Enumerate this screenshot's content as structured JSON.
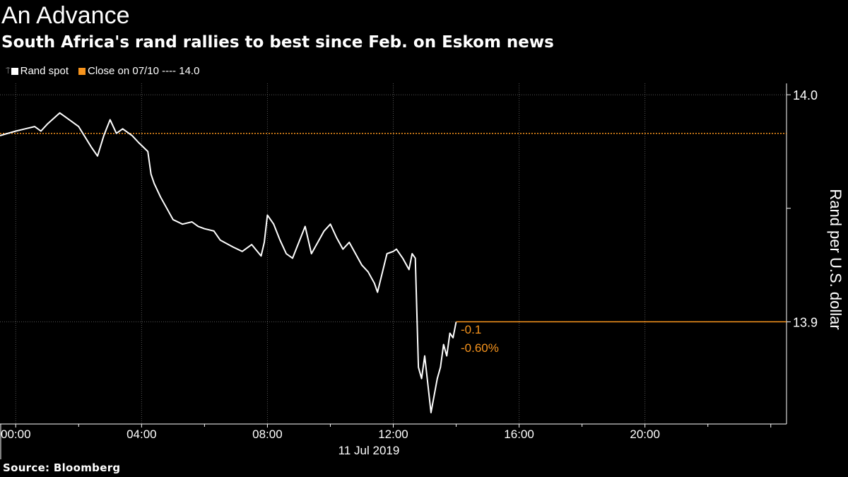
{
  "title": "An Advance",
  "subtitle": "South Africa's rand rallies to best since Feb. on Eskom news",
  "source": "Source: Bloomberg",
  "legend": {
    "series_label": "Rand spot",
    "ref_label": "Close on 07/10 ---- 14.0"
  },
  "colors": {
    "background": "#000000",
    "series": "#ffffff",
    "reference": "#f7941d",
    "grid": "#666666"
  },
  "annotation": {
    "change": "-0.1",
    "percent": "-0.60%"
  },
  "chart_data": {
    "type": "line",
    "title": "An Advance",
    "ylabel": "Rand per U.S. dollar",
    "x_date_label": "11 Jul 2019",
    "xlim": [
      -0.5,
      24.5
    ],
    "ylim": [
      13.855,
      14.005
    ],
    "x_ticks": [
      {
        "value": 0,
        "label": "00:00"
      },
      {
        "value": 4,
        "label": "04:00"
      },
      {
        "value": 8,
        "label": "08:00"
      },
      {
        "value": 12,
        "label": "12:00"
      },
      {
        "value": 16,
        "label": "16:00"
      },
      {
        "value": 20,
        "label": "20:00"
      }
    ],
    "y_ticks": [
      {
        "value": 14.0,
        "label": "14.0"
      },
      {
        "value": 13.95,
        "label": ""
      },
      {
        "value": 13.9,
        "label": "13.9"
      }
    ],
    "reference_line": {
      "name": "Close on 07/10",
      "value": 13.983
    },
    "series": [
      {
        "name": "Rand spot",
        "x": [
          -0.5,
          0.0,
          0.3,
          0.6,
          0.8,
          1.0,
          1.4,
          1.6,
          2.0,
          2.4,
          2.6,
          2.8,
          3.0,
          3.2,
          3.4,
          3.7,
          3.9,
          4.2,
          4.3,
          4.4,
          4.6,
          4.8,
          5.0,
          5.3,
          5.6,
          5.8,
          6.0,
          6.3,
          6.5,
          6.9,
          7.2,
          7.5,
          7.8,
          7.9,
          8.0,
          8.2,
          8.4,
          8.6,
          8.8,
          9.0,
          9.2,
          9.4,
          9.6,
          9.8,
          10.0,
          10.2,
          10.4,
          10.6,
          10.8,
          11.0,
          11.2,
          11.4,
          11.5,
          11.8,
          12.0,
          12.1,
          12.3,
          12.5,
          12.6,
          12.7,
          12.8,
          12.9,
          13.0,
          13.2,
          13.4,
          13.5,
          13.6,
          13.7,
          13.8,
          13.9,
          14.0
        ],
        "y": [
          13.982,
          13.984,
          13.985,
          13.986,
          13.984,
          13.987,
          13.992,
          13.99,
          13.986,
          13.977,
          13.973,
          13.982,
          13.989,
          13.983,
          13.985,
          13.982,
          13.979,
          13.975,
          13.965,
          13.961,
          13.955,
          13.95,
          13.945,
          13.943,
          13.944,
          13.942,
          13.941,
          13.94,
          13.936,
          13.933,
          13.931,
          13.934,
          13.929,
          13.935,
          13.947,
          13.943,
          13.936,
          13.93,
          13.928,
          13.935,
          13.942,
          13.93,
          13.935,
          13.94,
          13.943,
          13.937,
          13.932,
          13.935,
          13.93,
          13.925,
          13.922,
          13.917,
          13.913,
          13.93,
          13.931,
          13.932,
          13.928,
          13.923,
          13.93,
          13.928,
          13.88,
          13.875,
          13.885,
          13.86,
          13.875,
          13.88,
          13.89,
          13.885,
          13.895,
          13.893,
          13.9
        ]
      }
    ]
  }
}
